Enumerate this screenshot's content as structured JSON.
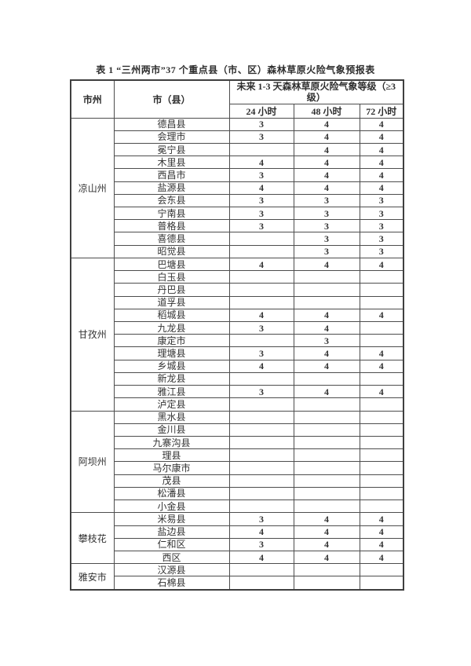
{
  "title": "表 1 “三州两市”37 个重点县（市、区）森林草原火险气象预报表",
  "colors": {
    "page_background": "#ffffff",
    "border": "#4d4d4d",
    "text": "#333333"
  },
  "table": {
    "headers": {
      "prefecture": "市州",
      "city_county": "市（县）",
      "forecast_line1": "未来 1-3 天森林草原火险气象等级（≥3",
      "forecast_line2": "级）",
      "h24": "24 小时",
      "h48": "48 小时",
      "h72": "72 小时"
    },
    "groups": [
      {
        "prefecture": "凉山州",
        "rows": [
          {
            "county": "德昌县",
            "h24": "3",
            "h48": "4",
            "h72": "4"
          },
          {
            "county": "会理市",
            "h24": "3",
            "h48": "4",
            "h72": "4"
          },
          {
            "county": "冕宁县",
            "h24": "",
            "h48": "4",
            "h72": "4"
          },
          {
            "county": "木里县",
            "h24": "4",
            "h48": "4",
            "h72": "4"
          },
          {
            "county": "西昌市",
            "h24": "3",
            "h48": "4",
            "h72": "4"
          },
          {
            "county": "盐源县",
            "h24": "4",
            "h48": "4",
            "h72": "4"
          },
          {
            "county": "会东县",
            "h24": "3",
            "h48": "3",
            "h72": "3"
          },
          {
            "county": "宁南县",
            "h24": "3",
            "h48": "3",
            "h72": "3"
          },
          {
            "county": "普格县",
            "h24": "3",
            "h48": "3",
            "h72": "3"
          },
          {
            "county": "喜德县",
            "h24": "",
            "h48": "3",
            "h72": "3"
          },
          {
            "county": "昭觉县",
            "h24": "",
            "h48": "3",
            "h72": "3"
          }
        ]
      },
      {
        "prefecture": "甘孜州",
        "rows": [
          {
            "county": "巴塘县",
            "h24": "4",
            "h48": "4",
            "h72": "4"
          },
          {
            "county": "白玉县",
            "h24": "",
            "h48": "",
            "h72": ""
          },
          {
            "county": "丹巴县",
            "h24": "",
            "h48": "",
            "h72": ""
          },
          {
            "county": "道孚县",
            "h24": "",
            "h48": "",
            "h72": ""
          },
          {
            "county": "稻城县",
            "h24": "4",
            "h48": "4",
            "h72": "4"
          },
          {
            "county": "九龙县",
            "h24": "3",
            "h48": "4",
            "h72": ""
          },
          {
            "county": "康定市",
            "h24": "",
            "h48": "3",
            "h72": ""
          },
          {
            "county": "理塘县",
            "h24": "3",
            "h48": "4",
            "h72": "4"
          },
          {
            "county": "乡城县",
            "h24": "4",
            "h48": "4",
            "h72": "4"
          },
          {
            "county": "新龙县",
            "h24": "",
            "h48": "",
            "h72": ""
          },
          {
            "county": "雅江县",
            "h24": "3",
            "h48": "4",
            "h72": "4"
          },
          {
            "county": "泸定县",
            "h24": "",
            "h48": "",
            "h72": ""
          }
        ]
      },
      {
        "prefecture": "阿坝州",
        "rows": [
          {
            "county": "黑水县",
            "h24": "",
            "h48": "",
            "h72": ""
          },
          {
            "county": "金川县",
            "h24": "",
            "h48": "",
            "h72": ""
          },
          {
            "county": "九寨沟县",
            "h24": "",
            "h48": "",
            "h72": ""
          },
          {
            "county": "理县",
            "h24": "",
            "h48": "",
            "h72": ""
          },
          {
            "county": "马尔康市",
            "h24": "",
            "h48": "",
            "h72": ""
          },
          {
            "county": "茂县",
            "h24": "",
            "h48": "",
            "h72": ""
          },
          {
            "county": "松潘县",
            "h24": "",
            "h48": "",
            "h72": ""
          },
          {
            "county": "小金县",
            "h24": "",
            "h48": "",
            "h72": ""
          }
        ]
      },
      {
        "prefecture": "攀枝花",
        "rows": [
          {
            "county": "米易县",
            "h24": "3",
            "h48": "4",
            "h72": "4"
          },
          {
            "county": "盐边县",
            "h24": "4",
            "h48": "4",
            "h72": "4"
          },
          {
            "county": "仁和区",
            "h24": "3",
            "h48": "4",
            "h72": "4"
          },
          {
            "county": "西区",
            "h24": "4",
            "h48": "4",
            "h72": "4"
          }
        ]
      },
      {
        "prefecture": "雅安市",
        "rows": [
          {
            "county": "汉源县",
            "h24": "",
            "h48": "",
            "h72": ""
          },
          {
            "county": "石棉县",
            "h24": "",
            "h48": "",
            "h72": ""
          }
        ]
      }
    ]
  }
}
